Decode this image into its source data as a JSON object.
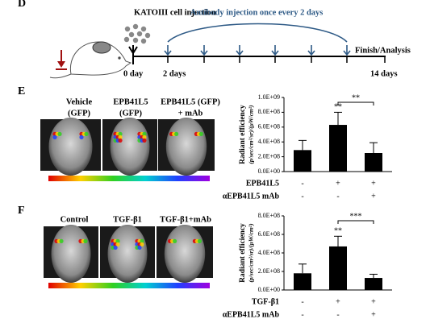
{
  "panel_labels": [
    "D",
    "E",
    "F"
  ],
  "timeline": {
    "cell_injection": "KATOIII cell injection",
    "antibody": "Antibody injection once every 2 days",
    "finish": "Finish/Analysis",
    "start": "0 day",
    "second": "2 days",
    "end": "14 days"
  },
  "images": {
    "E": [
      [
        "Vehicle",
        "(GFP)"
      ],
      [
        "EPB41L5",
        "(GFP)"
      ],
      [
        "EPB41L5 (GFP)",
        "+ mAb"
      ]
    ],
    "F": [
      [
        "Control"
      ],
      [
        "TGF-β1"
      ],
      [
        "TGF-β1+mAb"
      ]
    ]
  },
  "chart_data": [
    {
      "type": "bar",
      "y_label": "Radiant efficiency",
      "y_unit": "(p/sec/cm²/sr)/(μW/cm²)",
      "values": [
        290000000,
        630000000,
        250000000
      ],
      "errors": [
        130000000,
        170000000,
        140000000
      ],
      "color": "#000000",
      "ylim": [
        0,
        1000000000
      ],
      "yticks": [
        {
          "value": 0,
          "label": "0.0E+00"
        },
        {
          "value": 200000000,
          "label": "2.0E+08"
        },
        {
          "value": 400000000,
          "label": "4.0E+08"
        },
        {
          "value": 600000000,
          "label": "6.0E+08"
        },
        {
          "value": 800000000,
          "label": "8.0E+08"
        },
        {
          "value": 1000000000,
          "label": "1.0E+09"
        }
      ],
      "condition_rows": [
        {
          "label": "EPB41L5",
          "signs": [
            "-",
            "+",
            "+"
          ]
        },
        {
          "label": "αEPB41L5 mAb",
          "signs": [
            "-",
            "-",
            "+"
          ]
        }
      ],
      "annotations": [
        {
          "text": "**",
          "over": 1
        },
        {
          "text": "**",
          "from": 1,
          "to": 2
        }
      ]
    },
    {
      "type": "bar",
      "y_label": "Radiant efficiency",
      "y_unit": "(p/sec/cm²/sr)/(μW/cm²)",
      "values": [
        180000000,
        470000000,
        130000000
      ],
      "errors": [
        100000000,
        110000000,
        40000000
      ],
      "color": "#000000",
      "ylim": [
        0,
        800000000
      ],
      "yticks": [
        {
          "value": 0,
          "label": "0.0E+00"
        },
        {
          "value": 200000000,
          "label": "2.0E+08"
        },
        {
          "value": 400000000,
          "label": "4.0E+08"
        },
        {
          "value": 600000000,
          "label": "6.0E+08"
        },
        {
          "value": 800000000,
          "label": "8.0E+08"
        }
      ],
      "condition_rows": [
        {
          "label": "TGF-β1",
          "signs": [
            "-",
            "+",
            "+"
          ]
        },
        {
          "label": "αEPB41L5 mAb",
          "signs": [
            "-",
            "-",
            "+"
          ]
        }
      ],
      "annotations": [
        {
          "text": "**",
          "over": 1
        },
        {
          "text": "***",
          "from": 1,
          "to": 2
        }
      ]
    }
  ]
}
